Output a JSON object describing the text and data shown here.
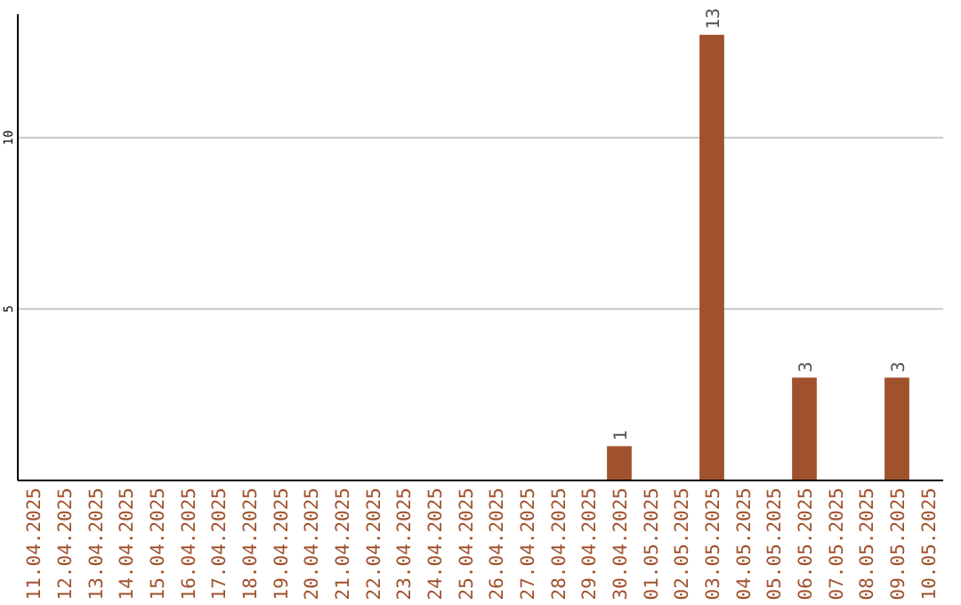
{
  "chart_data": {
    "type": "bar",
    "categories": [
      "11.04.2025",
      "12.04.2025",
      "13.04.2025",
      "14.04.2025",
      "15.04.2025",
      "16.04.2025",
      "17.04.2025",
      "18.04.2025",
      "19.04.2025",
      "20.04.2025",
      "21.04.2025",
      "22.04.2025",
      "23.04.2025",
      "24.04.2025",
      "25.04.2025",
      "26.04.2025",
      "27.04.2025",
      "28.04.2025",
      "29.04.2025",
      "30.04.2025",
      "01.05.2025",
      "02.05.2025",
      "03.05.2025",
      "04.05.2025",
      "05.05.2025",
      "06.05.2025",
      "07.05.2025",
      "08.05.2025",
      "09.05.2025",
      "10.05.2025"
    ],
    "values": [
      0,
      0,
      0,
      0,
      0,
      0,
      0,
      0,
      0,
      0,
      0,
      0,
      0,
      0,
      0,
      0,
      0,
      0,
      0,
      1,
      0,
      0,
      13,
      0,
      0,
      3,
      0,
      0,
      3,
      0
    ],
    "value_labels": [
      null,
      null,
      null,
      null,
      null,
      null,
      null,
      null,
      null,
      null,
      null,
      null,
      null,
      null,
      null,
      null,
      null,
      null,
      null,
      "1",
      null,
      null,
      "13",
      null,
      null,
      "3",
      null,
      null,
      "3",
      null
    ],
    "color": "#a0522d",
    "ylim": [
      0,
      13.6
    ],
    "yticks": [
      5,
      10
    ],
    "grid": "y"
  }
}
